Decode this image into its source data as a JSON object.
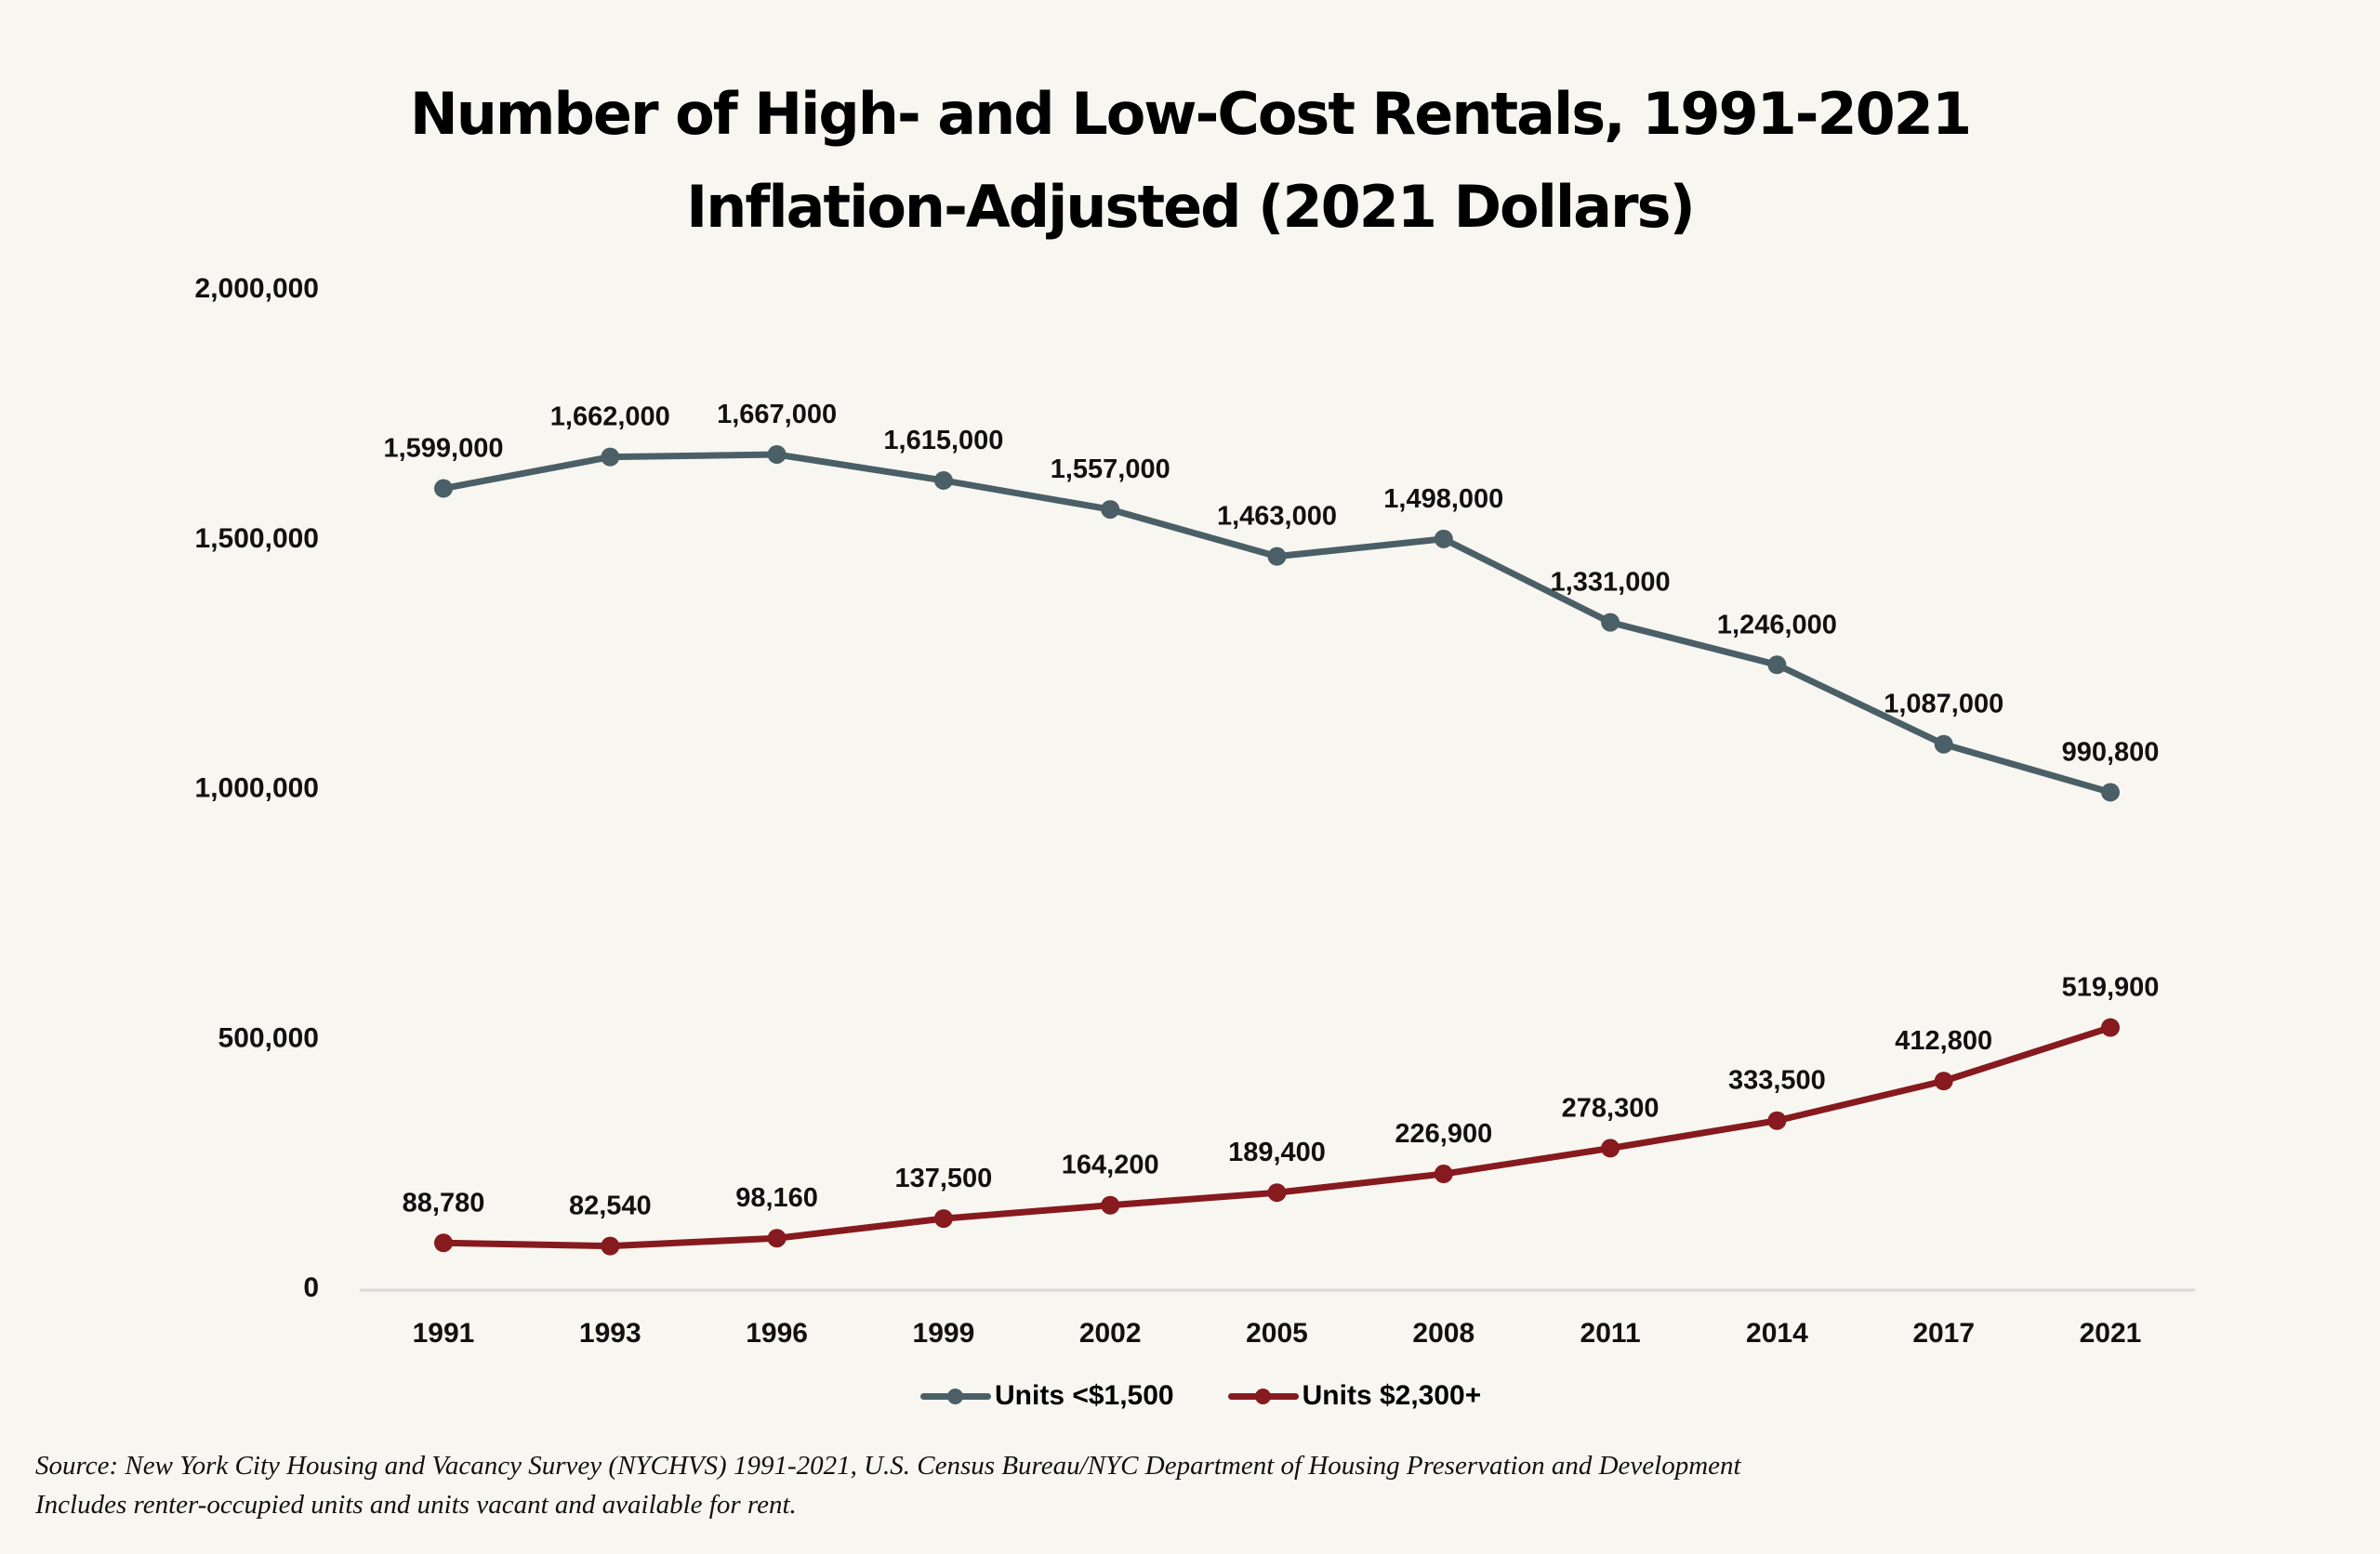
{
  "chart_data": {
    "type": "line",
    "title": "Number of High- and Low-Cost Rentals, 1991-2021",
    "subtitle": "Inflation-Adjusted (2021 Dollars)",
    "xlabel": "",
    "ylabel": "",
    "categories": [
      "1991",
      "1993",
      "1996",
      "1999",
      "2002",
      "2005",
      "2008",
      "2011",
      "2014",
      "2017",
      "2021"
    ],
    "ylim": [
      0,
      2000000
    ],
    "yticks": [
      0,
      500000,
      1000000,
      1500000,
      2000000
    ],
    "ytick_labels": [
      "0",
      "500,000",
      "1,000,000",
      "1,500,000",
      "2,000,000"
    ],
    "grid": false,
    "legend_position": "bottom",
    "series": [
      {
        "name": "Units <$1,500",
        "color": "#4b5f67",
        "values": [
          1599000,
          1662000,
          1667000,
          1615000,
          1557000,
          1463000,
          1498000,
          1331000,
          1246000,
          1087000,
          990800
        ],
        "labels": [
          "1,599,000",
          "1,662,000",
          "1,667,000",
          "1,615,000",
          "1,557,000",
          "1,463,000",
          "1,498,000",
          "1,331,000",
          "1,246,000",
          "1,087,000",
          "990,800"
        ]
      },
      {
        "name": "Units $2,300+",
        "color": "#861a1e",
        "values": [
          88780,
          82540,
          98160,
          137500,
          164200,
          189400,
          226900,
          278300,
          333500,
          412800,
          519900
        ],
        "labels": [
          "88,780",
          "82,540",
          "98,160",
          "137,500",
          "164,200",
          "189,400",
          "226,900",
          "278,300",
          "333,500",
          "412,800",
          "519,900"
        ]
      }
    ]
  },
  "header": {
    "title": "Number of High- and Low-Cost Rentals, 1991-2021",
    "subtitle": "Inflation-Adjusted (2021 Dollars)"
  },
  "legend": {
    "items": [
      {
        "label": "Units <$1,500",
        "color": "#4b5f67"
      },
      {
        "label": "Units $2,300+",
        "color": "#861a1e"
      }
    ]
  },
  "footer": {
    "source": "Source: New York City Housing and Vacancy Survey (NYCHVS) 1991-2021, U.S. Census Bureau/NYC Department of Housing Preservation and Development",
    "note": "Includes renter-occupied units and units vacant and available for rent."
  }
}
